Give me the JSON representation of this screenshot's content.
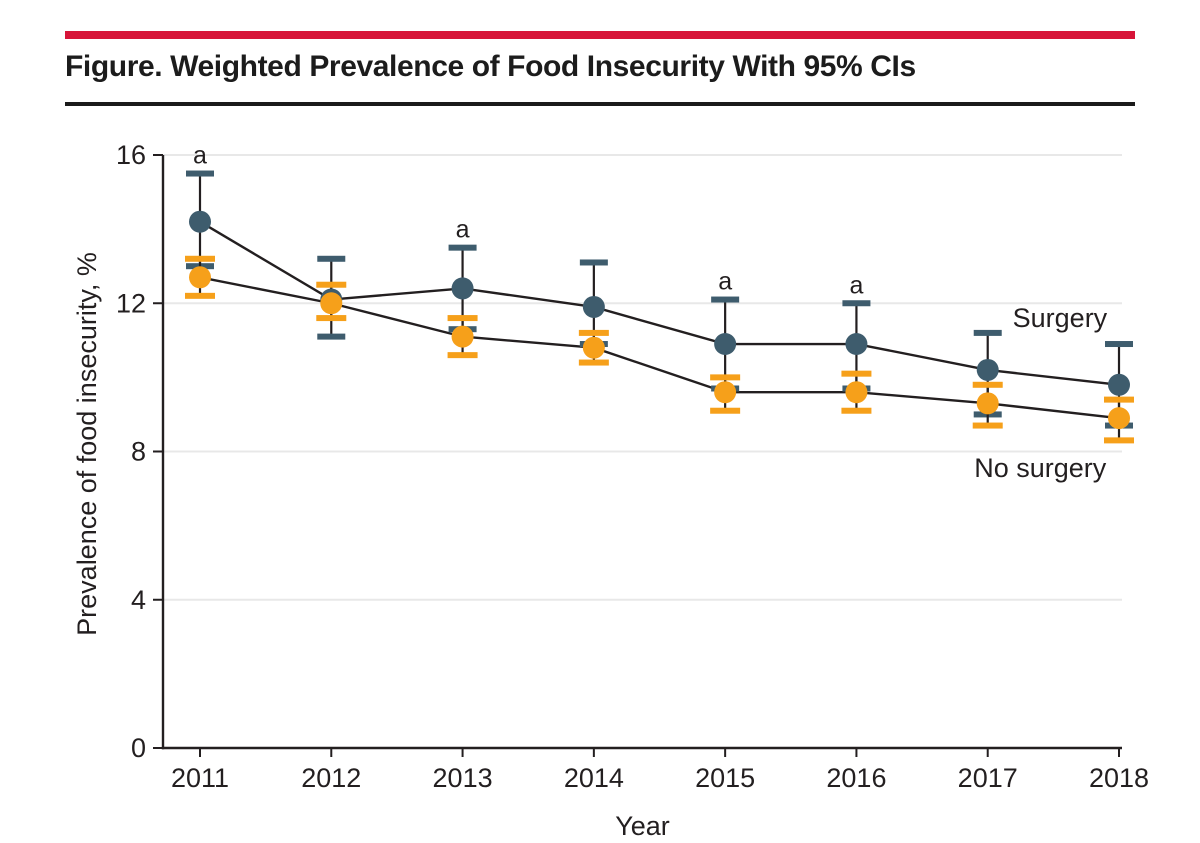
{
  "page": {
    "title": "Figure. Weighted Prevalence of Food Insecurity With 95% CIs",
    "accent_color": "#d71539",
    "divider_color": "#1a1a1a"
  },
  "chart_data": {
    "type": "line",
    "title": "Weighted Prevalence of Food Insecurity With 95% CIs",
    "xlabel": "Year",
    "ylabel": "Prevalence of food insecurity, %",
    "x": [
      2011,
      2012,
      2013,
      2014,
      2015,
      2016,
      2017,
      2018
    ],
    "ylim": [
      0,
      16
    ],
    "yticks": [
      0,
      4,
      8,
      12,
      16
    ],
    "grid": true,
    "error_bars": "95% CI",
    "legend_position": "inline-right",
    "series": [
      {
        "name": "Surgery",
        "color": "#3e5c6d",
        "values": [
          14.2,
          12.1,
          12.4,
          11.9,
          10.9,
          10.9,
          10.2,
          9.8
        ],
        "ci_low": [
          13.0,
          11.1,
          11.3,
          10.9,
          9.7,
          9.7,
          9.0,
          8.7
        ],
        "ci_high": [
          15.5,
          13.2,
          13.5,
          13.1,
          12.1,
          12.0,
          11.2,
          10.9
        ],
        "label": {
          "text": "Surgery",
          "x": 2017.55,
          "y": 11.6
        }
      },
      {
        "name": "No surgery",
        "color": "#f6a01a",
        "values": [
          12.7,
          12.0,
          11.1,
          10.8,
          9.6,
          9.6,
          9.3,
          8.9
        ],
        "ci_low": [
          12.2,
          11.6,
          10.6,
          10.4,
          9.1,
          9.1,
          8.7,
          8.3
        ],
        "ci_high": [
          13.2,
          12.5,
          11.6,
          11.2,
          10.0,
          10.1,
          9.8,
          9.4
        ],
        "label": {
          "text": "No surgery",
          "x": 2017.4,
          "y": 7.55
        }
      }
    ],
    "annotations": [
      {
        "text": "a",
        "year": 2011,
        "series": "Surgery"
      },
      {
        "text": "a",
        "year": 2013,
        "series": "Surgery"
      },
      {
        "text": "a",
        "year": 2015,
        "series": "Surgery"
      },
      {
        "text": "a",
        "year": 2016,
        "series": "Surgery"
      }
    ]
  }
}
